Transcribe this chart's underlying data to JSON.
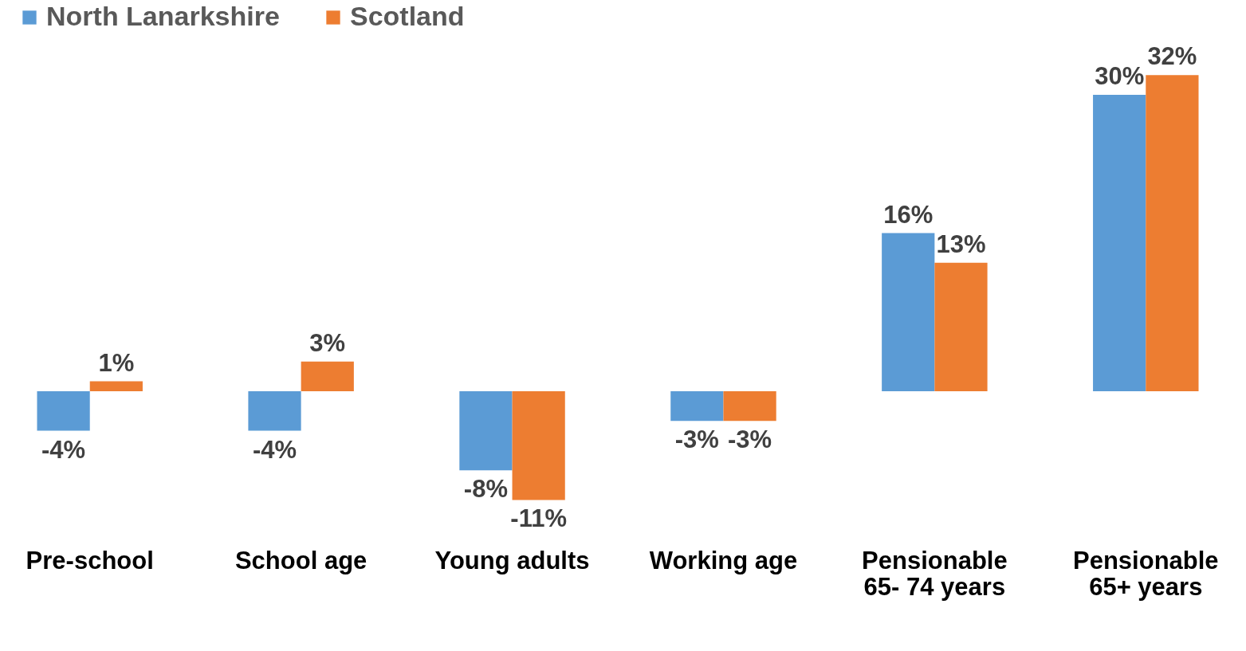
{
  "chart_data": {
    "type": "bar",
    "categories": [
      "Pre-school",
      "School age",
      "Young adults",
      "Working age",
      "Pensionable 65- 74 years",
      "Pensionable 65+ years"
    ],
    "series": [
      {
        "name": "North Lanarkshire",
        "color": "#5b9bd5",
        "values": [
          -4,
          -4,
          -8,
          -3,
          16,
          30
        ],
        "value_labels": [
          "-4%",
          "-4%",
          "-8%",
          "-3%",
          "16%",
          "30%"
        ]
      },
      {
        "name": "Scotland",
        "color": "#ed7d31",
        "values": [
          1,
          3,
          -11,
          -3,
          13,
          32
        ],
        "value_labels": [
          "1%",
          "3%",
          "-11%",
          "-3%",
          "13%",
          "32%"
        ]
      }
    ],
    "legend": "top",
    "grid": false
  }
}
